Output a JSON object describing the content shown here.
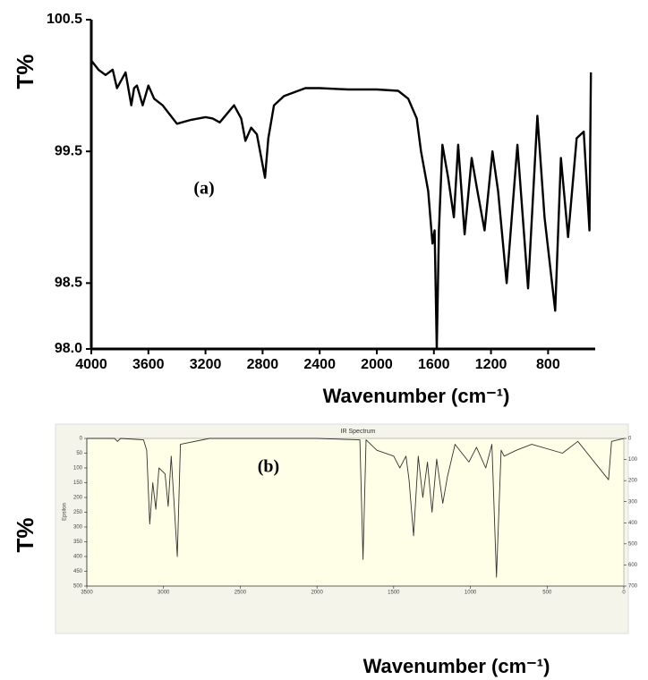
{
  "chart_data": [
    {
      "type": "line",
      "ylabel": "T%",
      "xlabel": "Wavenumber (cm⁻¹)",
      "annotation": "(a)",
      "xlim": [
        4000,
        470
      ],
      "ylim": [
        98,
        100.5
      ],
      "xticks": [
        4000,
        3600,
        3200,
        2800,
        2400,
        2000,
        1600,
        1200,
        800
      ],
      "yticks": [
        {
          "value": 98,
          "label": "98.0"
        },
        98.5,
        99.5,
        100.5
      ],
      "color": "#000000",
      "x": [
        4000,
        3950,
        3900,
        3850,
        3820,
        3800,
        3760,
        3720,
        3700,
        3680,
        3640,
        3600,
        3560,
        3500,
        3400,
        3300,
        3200,
        3150,
        3100,
        3000,
        2950,
        2920,
        2880,
        2840,
        2783,
        2760,
        2720,
        2650,
        2500,
        2400,
        2200,
        2000,
        1850,
        1780,
        1720,
        1690,
        1640,
        1610,
        1595,
        1580,
        1565,
        1540,
        1500,
        1460,
        1430,
        1385,
        1335,
        1295,
        1245,
        1190,
        1150,
        1090,
        1015,
        940,
        875,
        825,
        750,
        710,
        660,
        600,
        550,
        510,
        500
      ],
      "values": [
        100.19,
        100.12,
        100.08,
        100.12,
        99.98,
        100.02,
        100.1,
        99.85,
        99.98,
        100.0,
        99.85,
        100.0,
        99.9,
        99.85,
        99.71,
        99.74,
        99.76,
        99.75,
        99.72,
        99.85,
        99.75,
        99.58,
        99.68,
        99.63,
        99.3,
        99.6,
        99.85,
        99.92,
        99.98,
        99.98,
        99.97,
        99.97,
        99.96,
        99.9,
        99.75,
        99.5,
        99.2,
        98.8,
        98.9,
        98.0,
        98.9,
        99.55,
        99.3,
        99.0,
        99.55,
        98.87,
        99.45,
        99.2,
        98.9,
        99.5,
        99.2,
        98.5,
        99.55,
        98.46,
        99.77,
        99.0,
        98.29,
        99.45,
        98.85,
        99.6,
        99.65,
        98.9,
        100.1
      ]
    },
    {
      "type": "line",
      "title": "IR Spectrum",
      "ylabel": "T%",
      "inner_ylabel": "Epsilon",
      "xlabel": "Wavenumber (cm⁻¹)",
      "annotation": "(b)",
      "xlim": [
        3500,
        0
      ],
      "ylim": [
        500,
        0
      ],
      "y2lim": [
        700,
        0
      ],
      "xticks": [
        3500,
        3000,
        2500,
        2000,
        1500,
        1000,
        500,
        0
      ],
      "yticks": [
        0,
        50,
        100,
        150,
        200,
        250,
        300,
        350,
        400,
        450,
        500
      ],
      "y2ticks": [
        0,
        100,
        200,
        300,
        400,
        500,
        600,
        700
      ],
      "color": "#333333",
      "x": [
        3500,
        3320,
        3300,
        3280,
        3130,
        3110,
        3090,
        3070,
        3050,
        3030,
        2990,
        2970,
        2950,
        2910,
        2890,
        2700,
        2000,
        1720,
        1700,
        1680,
        1610,
        1500,
        1460,
        1420,
        1400,
        1370,
        1340,
        1310,
        1280,
        1250,
        1220,
        1180,
        1150,
        1100,
        1010,
        960,
        900,
        860,
        830,
        800,
        780,
        700,
        600,
        400,
        300,
        100,
        80,
        0
      ],
      "values": [
        0,
        0,
        10,
        0,
        5,
        40,
        290,
        150,
        240,
        100,
        120,
        230,
        60,
        400,
        20,
        0,
        0,
        5,
        410,
        5,
        40,
        60,
        100,
        60,
        140,
        330,
        60,
        200,
        80,
        250,
        70,
        220,
        130,
        20,
        80,
        30,
        100,
        20,
        470,
        40,
        60,
        40,
        20,
        50,
        10,
        140,
        10,
        0
      ]
    }
  ]
}
